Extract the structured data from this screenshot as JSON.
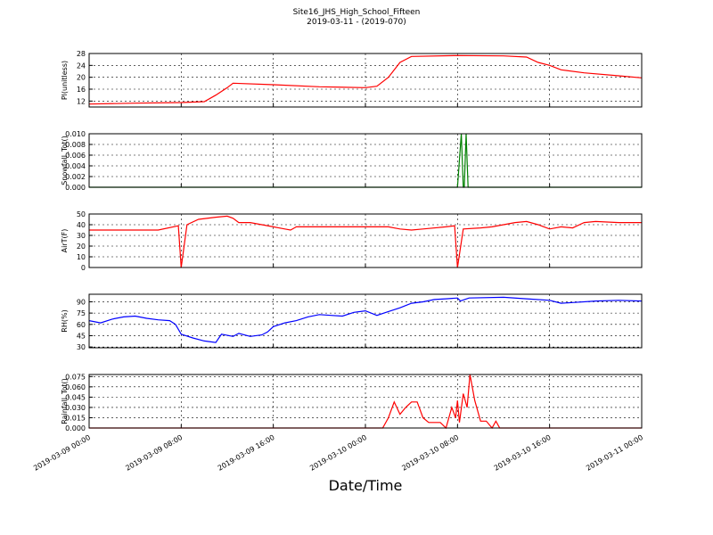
{
  "title": "Site16_JHS_High_School_Fifteen",
  "subtitle": "2019-03-11 - (2019-070)",
  "xlabel": "Date/Time",
  "xlim": [
    "2019-03-09 00:00",
    "2019-03-11 00:00"
  ],
  "xticks": [
    "2019-03-09 00:00",
    "2019-03-09 08:00",
    "2019-03-09 16:00",
    "2019-03-10 00:00",
    "2019-03-10 08:00",
    "2019-03-10 16:00",
    "2019-03-11 00:00"
  ],
  "grid": true,
  "chart_data": [
    {
      "type": "line",
      "ylabel": "Pl(unitless)",
      "color": "#ff0000",
      "ylim": [
        10,
        28
      ],
      "yticks": [
        12,
        16,
        20,
        24,
        28
      ],
      "x": [
        "2019-03-09 00:00",
        "2019-03-09 04:00",
        "2019-03-09 08:00",
        "2019-03-09 10:00",
        "2019-03-09 11:00",
        "2019-03-09 12:00",
        "2019-03-09 12:30",
        "2019-03-09 16:00",
        "2019-03-09 20:00",
        "2019-03-10 00:00",
        "2019-03-10 01:00",
        "2019-03-10 02:00",
        "2019-03-10 03:00",
        "2019-03-10 04:00",
        "2019-03-10 08:00",
        "2019-03-10 12:00",
        "2019-03-10 14:00",
        "2019-03-10 15:00",
        "2019-03-10 16:00",
        "2019-03-10 17:00",
        "2019-03-10 19:00",
        "2019-03-10 22:00",
        "2019-03-11 00:00"
      ],
      "values": [
        11,
        11.3,
        11.5,
        11.8,
        14,
        16.5,
        18,
        17.5,
        16.8,
        16.5,
        17,
        20,
        25,
        27,
        27.3,
        27.2,
        26.8,
        25,
        24,
        22.5,
        21.5,
        20.5,
        19.8
      ]
    },
    {
      "type": "line",
      "ylabel": "Snowfall_Tot()",
      "color": "#008000",
      "ylim": [
        0,
        0.01
      ],
      "yticks": [
        {
          "value": 0,
          "label": "0.000"
        },
        {
          "value": 0.002,
          "label": "0.002"
        },
        {
          "value": 0.004,
          "label": "0.004"
        },
        {
          "value": 0.006,
          "label": "0.006"
        },
        {
          "value": 0.008,
          "label": "0.008"
        },
        {
          "value": 0.01,
          "label": "0.010"
        }
      ],
      "x": [
        "2019-03-09 00:00",
        "2019-03-10 08:00",
        "2019-03-10 08:20",
        "2019-03-10 08:30",
        "2019-03-10 08:35",
        "2019-03-10 08:45",
        "2019-03-10 08:55",
        "2019-03-11 00:00"
      ],
      "values": [
        0,
        0,
        0.01,
        0,
        0,
        0.01,
        0,
        0
      ]
    },
    {
      "type": "line",
      "ylabel": "AirT(F)",
      "color": "#ff0000",
      "ylim": [
        0,
        50
      ],
      "yticks": [
        0,
        10,
        20,
        30,
        40,
        50
      ],
      "x": [
        "2019-03-09 00:00",
        "2019-03-09 04:00",
        "2019-03-09 06:00",
        "2019-03-09 07:45",
        "2019-03-09 08:00",
        "2019-03-09 08:30",
        "2019-03-09 09:30",
        "2019-03-09 11:00",
        "2019-03-09 12:00",
        "2019-03-09 12:30",
        "2019-03-09 13:00",
        "2019-03-09 14:00",
        "2019-03-09 15:00",
        "2019-03-09 16:00",
        "2019-03-09 17:00",
        "2019-03-09 17:30",
        "2019-03-09 18:00",
        "2019-03-10 00:00",
        "2019-03-10 02:00",
        "2019-03-10 03:00",
        "2019-03-10 04:00",
        "2019-03-10 05:00",
        "2019-03-10 07:00",
        "2019-03-10 07:45",
        "2019-03-10 08:00",
        "2019-03-10 08:30",
        "2019-03-10 10:00",
        "2019-03-10 11:00",
        "2019-03-10 12:00",
        "2019-03-10 13:00",
        "2019-03-10 14:00",
        "2019-03-10 15:00",
        "2019-03-10 16:00",
        "2019-03-10 17:00",
        "2019-03-10 18:00",
        "2019-03-10 19:00",
        "2019-03-10 20:00",
        "2019-03-10 22:00",
        "2019-03-11 00:00"
      ],
      "values": [
        35,
        35,
        35,
        39,
        0,
        40,
        45,
        47,
        48,
        46,
        42,
        42,
        40,
        38,
        36,
        35,
        38,
        38,
        38,
        36,
        35,
        36,
        38,
        39,
        0,
        36,
        37,
        38,
        40,
        42,
        43,
        40,
        36,
        38,
        37,
        42,
        43,
        42,
        42
      ]
    },
    {
      "type": "line",
      "ylabel": "RH(%)",
      "color": "#0000ff",
      "ylim": [
        29,
        100
      ],
      "yticks": [
        30,
        45,
        60,
        75,
        90
      ],
      "x": [
        "2019-03-09 00:00",
        "2019-03-09 01:00",
        "2019-03-09 02:00",
        "2019-03-09 03:00",
        "2019-03-09 04:00",
        "2019-03-09 05:00",
        "2019-03-09 06:00",
        "2019-03-09 07:00",
        "2019-03-09 07:30",
        "2019-03-09 08:00",
        "2019-03-09 09:00",
        "2019-03-09 10:00",
        "2019-03-09 11:00",
        "2019-03-09 11:30",
        "2019-03-09 12:30",
        "2019-03-09 13:00",
        "2019-03-09 14:00",
        "2019-03-09 15:00",
        "2019-03-09 15:30",
        "2019-03-09 16:00",
        "2019-03-09 17:00",
        "2019-03-09 18:00",
        "2019-03-09 19:00",
        "2019-03-09 20:00",
        "2019-03-09 21:00",
        "2019-03-09 22:00",
        "2019-03-09 23:00",
        "2019-03-10 00:00",
        "2019-03-10 01:00",
        "2019-03-10 02:00",
        "2019-03-10 03:00",
        "2019-03-10 04:00",
        "2019-03-10 05:00",
        "2019-03-10 06:00",
        "2019-03-10 07:00",
        "2019-03-10 08:00",
        "2019-03-10 08:15",
        "2019-03-10 09:00",
        "2019-03-10 12:00",
        "2019-03-10 14:00",
        "2019-03-10 16:00",
        "2019-03-10 17:00",
        "2019-03-10 18:00",
        "2019-03-10 20:00",
        "2019-03-10 22:00",
        "2019-03-11 00:00"
      ],
      "values": [
        65,
        62,
        67,
        70,
        71,
        68,
        66,
        65,
        60,
        47,
        42,
        38,
        36,
        47,
        44,
        48,
        44,
        46,
        50,
        57,
        62,
        65,
        70,
        73,
        72,
        71,
        76,
        78,
        72,
        77,
        82,
        88,
        90,
        93,
        94,
        95,
        91,
        95,
        96,
        94,
        92,
        88,
        89,
        91,
        92,
        91
      ]
    },
    {
      "type": "line",
      "ylabel": "Rainfall_Tot()",
      "color": "#ff0000",
      "ylim": [
        0,
        0.078
      ],
      "yticks": [
        {
          "value": 0,
          "label": "0.000"
        },
        {
          "value": 0.015,
          "label": "0.015"
        },
        {
          "value": 0.03,
          "label": "0.030"
        },
        {
          "value": 0.045,
          "label": "0.045"
        },
        {
          "value": 0.06,
          "label": "0.060"
        },
        {
          "value": 0.075,
          "label": "0.075"
        }
      ],
      "x": [
        "2019-03-09 00:00",
        "2019-03-10 01:30",
        "2019-03-10 02:00",
        "2019-03-10 02:30",
        "2019-03-10 03:00",
        "2019-03-10 03:30",
        "2019-03-10 04:00",
        "2019-03-10 04:30",
        "2019-03-10 05:00",
        "2019-03-10 05:30",
        "2019-03-10 06:30",
        "2019-03-10 07:00",
        "2019-03-10 07:30",
        "2019-03-10 07:50",
        "2019-03-10 08:00",
        "2019-03-10 08:10",
        "2019-03-10 08:30",
        "2019-03-10 08:50",
        "2019-03-10 09:05",
        "2019-03-10 09:30",
        "2019-03-10 10:00",
        "2019-03-10 10:30",
        "2019-03-10 11:00",
        "2019-03-10 11:20",
        "2019-03-10 11:40",
        "2019-03-11 00:00"
      ],
      "values": [
        0,
        0,
        0.015,
        0.038,
        0.02,
        0.03,
        0.038,
        0.038,
        0.015,
        0.008,
        0.008,
        0,
        0.03,
        0.015,
        0.04,
        0.008,
        0.05,
        0.03,
        0.078,
        0.04,
        0.01,
        0.01,
        0,
        0.01,
        0,
        0
      ]
    }
  ]
}
